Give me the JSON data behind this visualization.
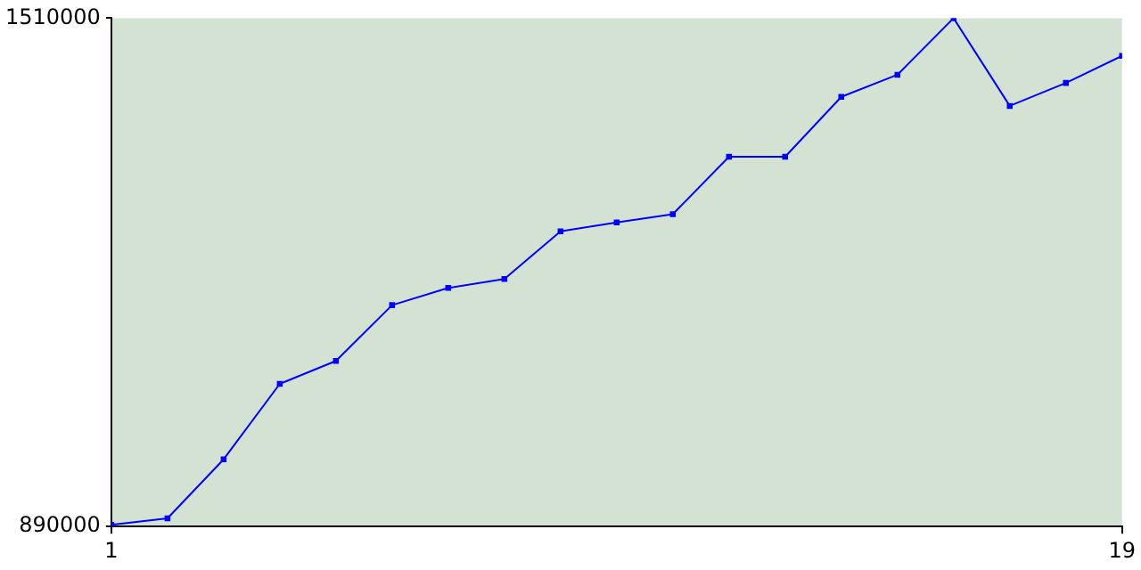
{
  "chart_data": {
    "type": "line",
    "x": [
      1,
      2,
      3,
      4,
      5,
      6,
      7,
      8,
      9,
      10,
      11,
      12,
      13,
      14,
      15,
      16,
      17,
      18,
      19
    ],
    "series": [
      {
        "color": "#0000ff",
        "values": [
          892000,
          900000,
          972000,
          1064000,
          1092000,
          1160000,
          1181000,
          1192000,
          1250000,
          1261000,
          1271000,
          1341000,
          1341000,
          1414000,
          1441000,
          1510000,
          1403000,
          1431000,
          1464000
        ]
      }
    ],
    "xlim": [
      1,
      19
    ],
    "xticks": [
      1,
      19
    ],
    "ylim": [
      890000,
      1510000
    ],
    "yticks": [
      890000,
      1510000
    ],
    "grid": false,
    "legend": false,
    "marker": "square",
    "line_style": "solid"
  }
}
